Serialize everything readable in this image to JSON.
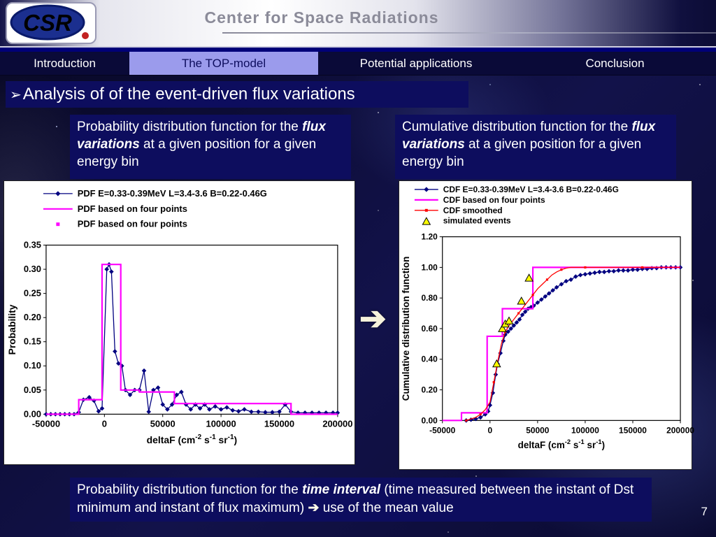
{
  "header": {
    "logo_text": "CSR",
    "title": "Center for Space Radiations"
  },
  "nav": {
    "items": [
      {
        "label": "Introduction",
        "active": false
      },
      {
        "label": "The TOP-model",
        "active": true
      },
      {
        "label": "Potential applications",
        "active": false
      },
      {
        "label": "Conclusion",
        "active": false
      }
    ]
  },
  "slide": {
    "bullet": "➢",
    "title": "Analysis of of the event-driven flux variations",
    "mid_arrow_glyph": "➔",
    "page_number": "7"
  },
  "boxes": {
    "pdf_desc": {
      "parts": [
        {
          "t": "Probability distribution function for the "
        },
        {
          "t": "flux variations",
          "em": true
        },
        {
          "t": " at a given position for a given energy bin"
        }
      ]
    },
    "cdf_desc": {
      "parts": [
        {
          "t": "Cumulative distribution function for the "
        },
        {
          "t": "flux variations",
          "em": true
        },
        {
          "t": " at a given position for a given energy bin"
        }
      ]
    },
    "bottom": {
      "parts": [
        {
          "t": "Probability distribution function for the "
        },
        {
          "t": "time interval",
          "em": true
        },
        {
          "t": " (time measured between the instant of Dst minimum and instant of flux maximum) "
        },
        {
          "t": "➔",
          "arrow": true
        },
        {
          "t": " use of the mean value"
        }
      ]
    }
  },
  "chart_data": [
    {
      "type": "line",
      "title": "",
      "ylabel": "Probability",
      "xlabel_parts": [
        {
          "t": "deltaF (cm"
        },
        {
          "t": "-2",
          "sup": true
        },
        {
          "t": " s"
        },
        {
          "t": "-1",
          "sup": true
        },
        {
          "t": " sr"
        },
        {
          "t": "-1",
          "sup": true
        },
        {
          "t": ")"
        }
      ],
      "xlim": [
        -50000,
        200000
      ],
      "ylim": [
        0,
        0.35
      ],
      "xticks": {
        "values": [
          -50000,
          0,
          50000,
          100000,
          150000,
          200000
        ],
        "labels": [
          "-50000",
          "0",
          "50000",
          "100000",
          "150000",
          "200000"
        ]
      },
      "yticks": {
        "values": [
          0,
          0.05,
          0.1,
          0.15,
          0.2,
          0.25,
          0.3,
          0.35
        ],
        "labels": [
          "0.00",
          "0.05",
          "0.10",
          "0.15",
          "0.20",
          "0.25",
          "0.30",
          "0.35"
        ]
      },
      "legend_position": "top-left-inside",
      "grid": false,
      "series": [
        {
          "name": "PDF E=0.33-0.39MeV  L=3.4-3.6 B=0.22-0.46G",
          "style": "line-diamond",
          "color": "#000080",
          "points": [
            [
              -50000,
              0
            ],
            [
              -46000,
              0
            ],
            [
              -42000,
              0
            ],
            [
              -38000,
              0
            ],
            [
              -34000,
              0
            ],
            [
              -30000,
              0
            ],
            [
              -26000,
              0
            ],
            [
              -22000,
              0.004
            ],
            [
              -18000,
              0.03
            ],
            [
              -13000,
              0.035
            ],
            [
              -9000,
              0.028
            ],
            [
              -5000,
              0.006
            ],
            [
              -2000,
              0.012
            ],
            [
              2000,
              0.3
            ],
            [
              4000,
              0.31
            ],
            [
              6000,
              0.295
            ],
            [
              9000,
              0.13
            ],
            [
              12000,
              0.105
            ],
            [
              15000,
              0.1
            ],
            [
              18000,
              0.05
            ],
            [
              22000,
              0.04
            ],
            [
              26000,
              0.05
            ],
            [
              30000,
              0.05
            ],
            [
              34000,
              0.09
            ],
            [
              38000,
              0.005
            ],
            [
              42000,
              0.05
            ],
            [
              46000,
              0.055
            ],
            [
              50000,
              0.02
            ],
            [
              54000,
              0.01
            ],
            [
              58000,
              0.02
            ],
            [
              62000,
              0.04
            ],
            [
              66000,
              0.046
            ],
            [
              70000,
              0.02
            ],
            [
              74000,
              0.01
            ],
            [
              78000,
              0.02
            ],
            [
              82000,
              0.012
            ],
            [
              86000,
              0.02
            ],
            [
              90000,
              0.01
            ],
            [
              95000,
              0.016
            ],
            [
              100000,
              0.01
            ],
            [
              105000,
              0.014
            ],
            [
              110000,
              0.008
            ],
            [
              115000,
              0.006
            ],
            [
              120000,
              0.01
            ],
            [
              126000,
              0.005
            ],
            [
              132000,
              0.005
            ],
            [
              138000,
              0.004
            ],
            [
              144000,
              0.004
            ],
            [
              150000,
              0.005
            ],
            [
              155000,
              0.02
            ],
            [
              160000,
              0.005
            ],
            [
              166000,
              0.003
            ],
            [
              172000,
              0.003
            ],
            [
              178000,
              0.003
            ],
            [
              184000,
              0.003
            ],
            [
              190000,
              0.003
            ],
            [
              196000,
              0.003
            ],
            [
              200000,
              0.003
            ]
          ]
        },
        {
          "name": "PDF based on four points",
          "style": "step",
          "color": "#ff00ff",
          "points": [
            [
              -50000,
              0
            ],
            [
              -22000,
              0
            ],
            [
              -22000,
              0.03
            ],
            [
              -2000,
              0.03
            ],
            [
              -2000,
              0.31
            ],
            [
              14000,
              0.31
            ],
            [
              14000,
              0.05
            ],
            [
              30000,
              0.05
            ],
            [
              30000,
              0.046
            ],
            [
              60000,
              0.046
            ],
            [
              60000,
              0.022
            ],
            [
              160000,
              0.022
            ],
            [
              160000,
              0
            ],
            [
              200000,
              0
            ]
          ]
        },
        {
          "name": "PDF based on four points",
          "style": "square-marker",
          "color": "#ff00ff",
          "points": []
        }
      ]
    },
    {
      "type": "line",
      "title": "",
      "ylabel": "Cumulative distribution function",
      "xlabel_parts": [
        {
          "t": "deltaF (cm"
        },
        {
          "t": "-2",
          "sup": true
        },
        {
          "t": " s"
        },
        {
          "t": "-1",
          "sup": true
        },
        {
          "t": " sr"
        },
        {
          "t": "-1",
          "sup": true
        },
        {
          "t": ")"
        }
      ],
      "xlim": [
        -50000,
        200000
      ],
      "ylim": [
        0,
        1.2
      ],
      "xticks": {
        "values": [
          -50000,
          0,
          50000,
          100000,
          150000,
          200000
        ],
        "labels": [
          "-50000",
          "0",
          "50000",
          "100000",
          "150000",
          "200000"
        ]
      },
      "yticks": {
        "values": [
          0,
          0.2,
          0.4,
          0.6,
          0.8,
          1.0,
          1.2
        ],
        "labels": [
          "0.00",
          "0.20",
          "0.40",
          "0.60",
          "0.80",
          "1.00",
          "1.20"
        ]
      },
      "legend_position": "top-left-inside",
      "grid": false,
      "series": [
        {
          "name": "CDF E=0.33-0.39MeV  L=3.4-3.6 B=0.22-0.46G",
          "style": "line-diamond",
          "color": "#000080",
          "points": [
            [
              -25000,
              0
            ],
            [
              -20000,
              0.005
            ],
            [
              -15000,
              0.01
            ],
            [
              -10000,
              0.02
            ],
            [
              -5000,
              0.04
            ],
            [
              -2000,
              0.06
            ],
            [
              0,
              0.1
            ],
            [
              3000,
              0.18
            ],
            [
              6000,
              0.3
            ],
            [
              8000,
              0.37
            ],
            [
              11000,
              0.44
            ],
            [
              14000,
              0.52
            ],
            [
              16000,
              0.56
            ],
            [
              19000,
              0.58
            ],
            [
              22000,
              0.6
            ],
            [
              25000,
              0.62
            ],
            [
              28000,
              0.64
            ],
            [
              31000,
              0.66
            ],
            [
              34000,
              0.69
            ],
            [
              37000,
              0.71
            ],
            [
              40000,
              0.73
            ],
            [
              43000,
              0.74
            ],
            [
              46000,
              0.75
            ],
            [
              50000,
              0.77
            ],
            [
              54000,
              0.79
            ],
            [
              58000,
              0.81
            ],
            [
              62000,
              0.83
            ],
            [
              66000,
              0.85
            ],
            [
              70000,
              0.87
            ],
            [
              75000,
              0.89
            ],
            [
              80000,
              0.91
            ],
            [
              85000,
              0.92
            ],
            [
              90000,
              0.94
            ],
            [
              95000,
              0.95
            ],
            [
              100000,
              0.955
            ],
            [
              105000,
              0.96
            ],
            [
              110000,
              0.965
            ],
            [
              115000,
              0.97
            ],
            [
              120000,
              0.97
            ],
            [
              125000,
              0.975
            ],
            [
              130000,
              0.975
            ],
            [
              135000,
              0.98
            ],
            [
              140000,
              0.98
            ],
            [
              145000,
              0.98
            ],
            [
              150000,
              0.985
            ],
            [
              155000,
              0.985
            ],
            [
              160000,
              0.99
            ],
            [
              165000,
              0.99
            ],
            [
              170000,
              0.995
            ],
            [
              175000,
              0.995
            ],
            [
              180000,
              1.0
            ],
            [
              185000,
              1.0
            ],
            [
              190000,
              1.0
            ],
            [
              195000,
              1.0
            ],
            [
              200000,
              1.0
            ]
          ]
        },
        {
          "name": "CDF based on four points",
          "style": "step",
          "color": "#ff00ff",
          "points": [
            [
              -50000,
              0
            ],
            [
              -30000,
              0
            ],
            [
              -30000,
              0.05
            ],
            [
              -3000,
              0.05
            ],
            [
              -3000,
              0.55
            ],
            [
              13000,
              0.55
            ],
            [
              13000,
              0.73
            ],
            [
              45000,
              0.73
            ],
            [
              45000,
              1.0
            ],
            [
              200000,
              1.0
            ]
          ]
        },
        {
          "name": "CDF smoothed",
          "style": "line-dot",
          "color": "#ff0000",
          "points": [
            [
              -25000,
              0
            ],
            [
              -20000,
              0.01
            ],
            [
              -15000,
              0.02
            ],
            [
              -10000,
              0.04
            ],
            [
              -5000,
              0.07
            ],
            [
              0,
              0.12
            ],
            [
              4000,
              0.25
            ],
            [
              8000,
              0.38
            ],
            [
              12000,
              0.5
            ],
            [
              16000,
              0.58
            ],
            [
              20000,
              0.62
            ],
            [
              25000,
              0.66
            ],
            [
              30000,
              0.7
            ],
            [
              35000,
              0.74
            ],
            [
              40000,
              0.78
            ],
            [
              45000,
              0.82
            ],
            [
              50000,
              0.86
            ],
            [
              55000,
              0.89
            ],
            [
              60000,
              0.92
            ],
            [
              65000,
              0.95
            ],
            [
              70000,
              0.97
            ],
            [
              75000,
              0.985
            ],
            [
              80000,
              0.995
            ],
            [
              85000,
              1.0
            ],
            [
              100000,
              1.0
            ],
            [
              120000,
              1.0
            ],
            [
              140000,
              1.0
            ],
            [
              160000,
              1.0
            ],
            [
              180000,
              1.0
            ],
            [
              200000,
              1.0
            ]
          ]
        },
        {
          "name": "simulated events",
          "style": "triangles",
          "color": "#ffff00",
          "points": [
            [
              7000,
              0.37
            ],
            [
              13000,
              0.6
            ],
            [
              16000,
              0.63
            ],
            [
              20000,
              0.65
            ],
            [
              33000,
              0.78
            ],
            [
              41000,
              0.93
            ]
          ]
        }
      ]
    }
  ]
}
